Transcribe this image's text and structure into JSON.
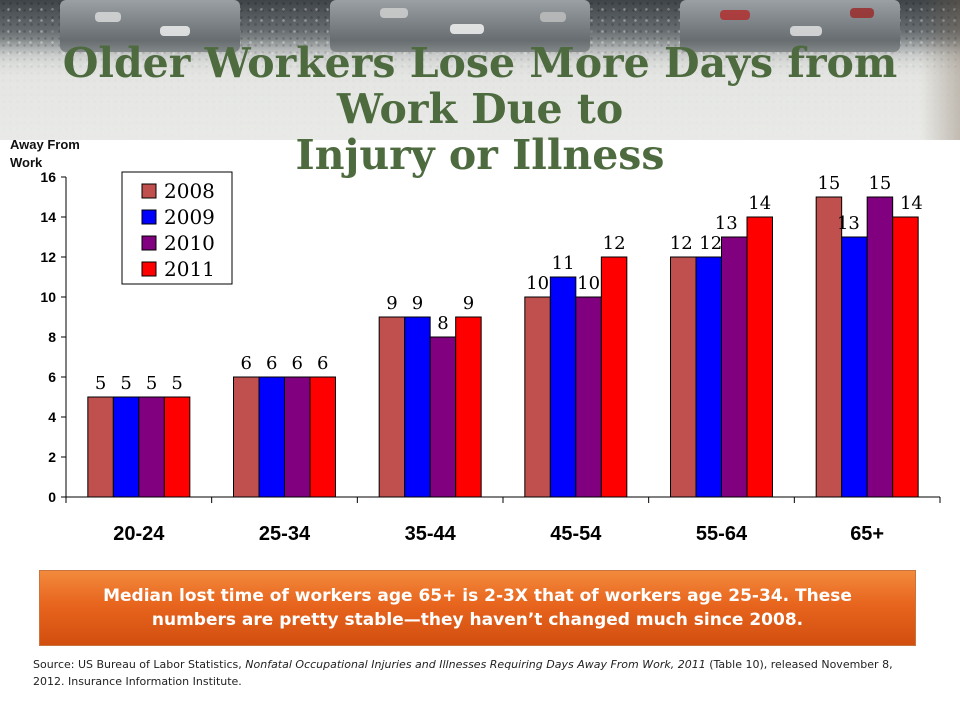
{
  "slide": {
    "title_line1": "Older Workers Lose More Days from Work Due to",
    "title_line2": "Injury or Illness",
    "callout_text": "Median lost time of workers age 65+ is 2-3X that of workers age 25-34. These numbers are pretty stable—they haven’t changed much since 2008.",
    "source": {
      "prefix": "Source: US Bureau of Labor Statistics, ",
      "publication": "Nonfatal Occupational Injuries and Illnesses Requiring Days Away From Work, 2011",
      "suffix": " (Table 10), released November 8, 2012.  Insurance Information Institute."
    }
  },
  "chart_data": {
    "type": "bar",
    "ylabel": "Away From Work",
    "xlabel": "",
    "ylim": [
      0,
      16
    ],
    "yticks": [
      0,
      2,
      4,
      6,
      8,
      10,
      12,
      14,
      16
    ],
    "grid": false,
    "legend_position": "top-left",
    "categories": [
      "20-24",
      "25-34",
      "35-44",
      "45-54",
      "55-64",
      "65+"
    ],
    "series": [
      {
        "name": "2008",
        "color": "#c0504d",
        "values": [
          5,
          6,
          9,
          10,
          12,
          15
        ]
      },
      {
        "name": "2009",
        "color": "#0000ff",
        "values": [
          5,
          6,
          9,
          11,
          12,
          13
        ]
      },
      {
        "name": "2010",
        "color": "#800080",
        "values": [
          5,
          6,
          8,
          10,
          13,
          15
        ]
      },
      {
        "name": "2011",
        "color": "#ff0000",
        "values": [
          5,
          6,
          9,
          12,
          14,
          14
        ]
      }
    ]
  }
}
